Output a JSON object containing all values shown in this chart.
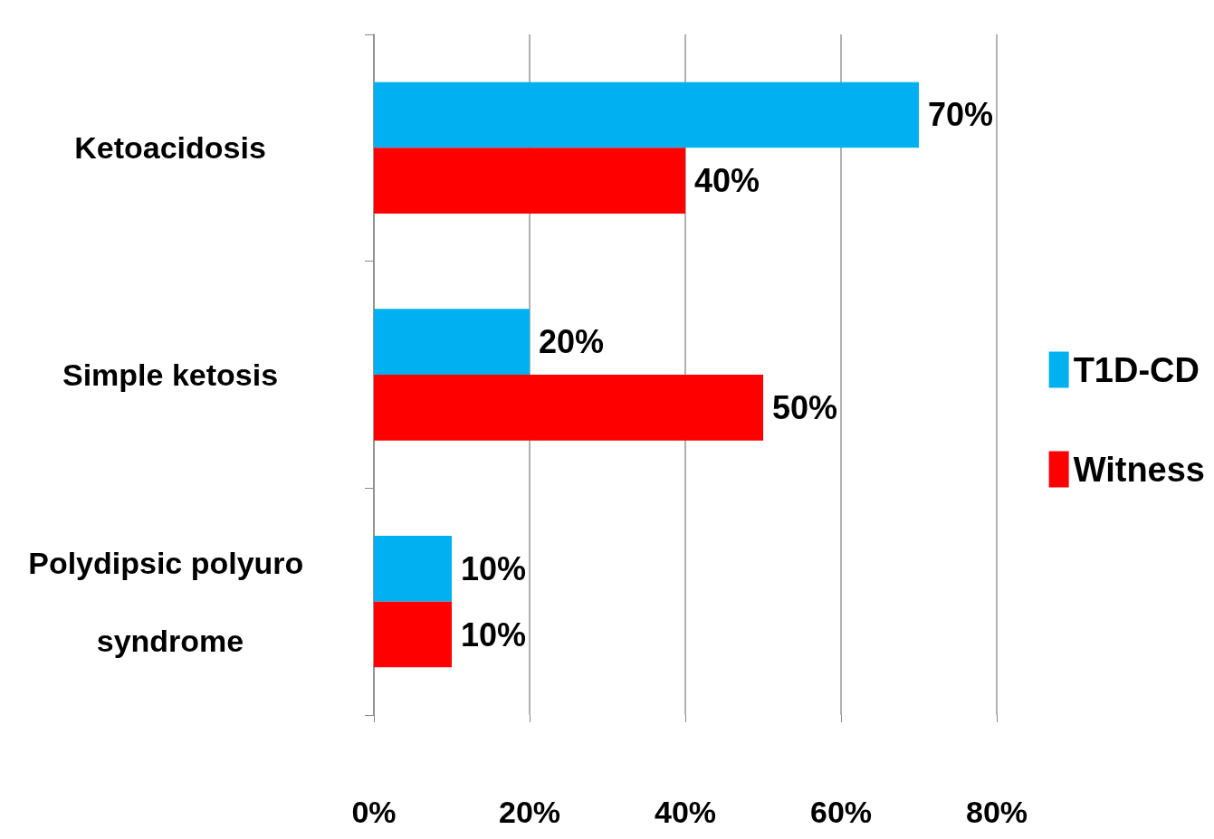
{
  "chart_data": {
    "type": "bar",
    "orientation": "horizontal",
    "categories": [
      "Ketoacidosis",
      "Simple ketosis",
      "Polydipsic polyuro syndrome"
    ],
    "series": [
      {
        "name": "T1D-CD",
        "color": "#00b0f0",
        "values": [
          70,
          20,
          10
        ],
        "value_labels": [
          "70%",
          "20%",
          "10%"
        ]
      },
      {
        "name": "Witness",
        "color": "#ff0000",
        "values": [
          40,
          50,
          10
        ],
        "value_labels": [
          "40%",
          "50%",
          "10%"
        ]
      }
    ],
    "xlim": [
      0,
      80
    ],
    "xticks": [
      {
        "value": 0,
        "label": "0%"
      },
      {
        "value": 20,
        "label": "20%"
      },
      {
        "value": 40,
        "label": "40%"
      },
      {
        "value": 60,
        "label": "60%"
      },
      {
        "value": 80,
        "label": "80%"
      }
    ],
    "grid": "x",
    "legend": "right"
  }
}
